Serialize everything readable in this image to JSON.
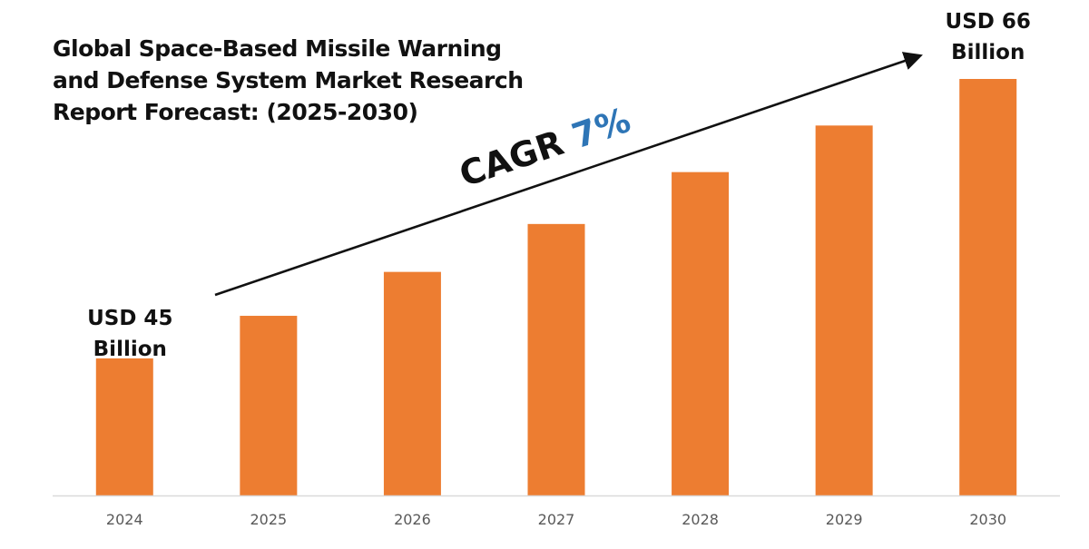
{
  "title": {
    "lines": [
      "Global Space-Based Missile Warning",
      "and Defense System Market Research",
      "Report Forecast: (2025-2030)"
    ]
  },
  "colors": {
    "bar": "#ED7D31",
    "cagr_value": "#2E75B6",
    "text": "#111111",
    "tick": "#595959",
    "axis": "#D9D9D9"
  },
  "chart_data": {
    "type": "bar",
    "title": "Global Space-Based Missile Warning and Defense System Market Research Report Forecast: (2025-2030)",
    "categories": [
      "2024",
      "2025",
      "2026",
      "2027",
      "2028",
      "2029",
      "2030"
    ],
    "values": [
      45,
      48.2,
      51.5,
      55.1,
      59.0,
      62.5,
      66
    ],
    "unit": "USD Billion",
    "ylim": [
      34.7,
      66
    ],
    "xlabel": "",
    "ylabel": "",
    "grid": false,
    "legend": "none",
    "annotations": {
      "start_label": {
        "category": "2024",
        "line1": "USD 45",
        "line2": "Billion"
      },
      "end_label": {
        "category": "2030",
        "line1": "USD 66",
        "line2": "Billion"
      },
      "cagr": {
        "prefix": "CAGR",
        "value": "7%"
      }
    }
  }
}
